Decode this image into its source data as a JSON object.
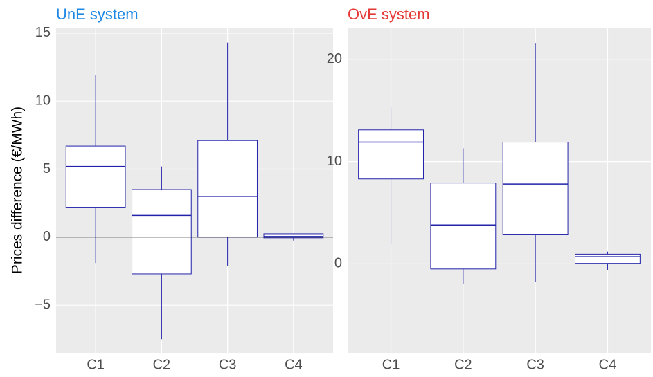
{
  "chart_data": [
    {
      "type": "box",
      "title": "UnE system",
      "title_color": "#1e88e5",
      "ylabel": "Prices difference (€/MWh)",
      "categories": [
        "C1",
        "C2",
        "C3",
        "C4"
      ],
      "whisker_low": [
        -1.9,
        -7.5,
        -2.1,
        -0.25
      ],
      "q1": [
        2.2,
        -2.7,
        0,
        -0.05
      ],
      "median": [
        5.2,
        1.6,
        3.0,
        0.05
      ],
      "q3": [
        6.7,
        3.5,
        7.1,
        0.25
      ],
      "whisker_high": [
        11.9,
        5.2,
        14.3,
        0.25
      ],
      "box_color": "#2222aa",
      "zero_line": true,
      "grid": true,
      "ylim": [
        -8.5,
        15.4
      ],
      "yticks": [
        {
          "value": -5,
          "label": "−5"
        },
        0,
        5,
        10,
        15
      ]
    },
    {
      "type": "box",
      "title": "OvE system",
      "title_color": "#e53935",
      "categories": [
        "C1",
        "C2",
        "C3",
        "C4"
      ],
      "whisker_low": [
        1.9,
        -2.0,
        -1.8,
        -0.6
      ],
      "q1": [
        8.3,
        -0.5,
        2.9,
        0.05
      ],
      "median": [
        11.9,
        3.8,
        7.8,
        0.7
      ],
      "q3": [
        13.1,
        7.9,
        11.9,
        0.95
      ],
      "whisker_high": [
        15.3,
        11.3,
        21.6,
        1.2
      ],
      "box_color": "#2222aa",
      "zero_line": true,
      "grid": true,
      "ylim": [
        -8.7,
        23.1
      ],
      "yticks": [
        0,
        10,
        20
      ]
    }
  ]
}
